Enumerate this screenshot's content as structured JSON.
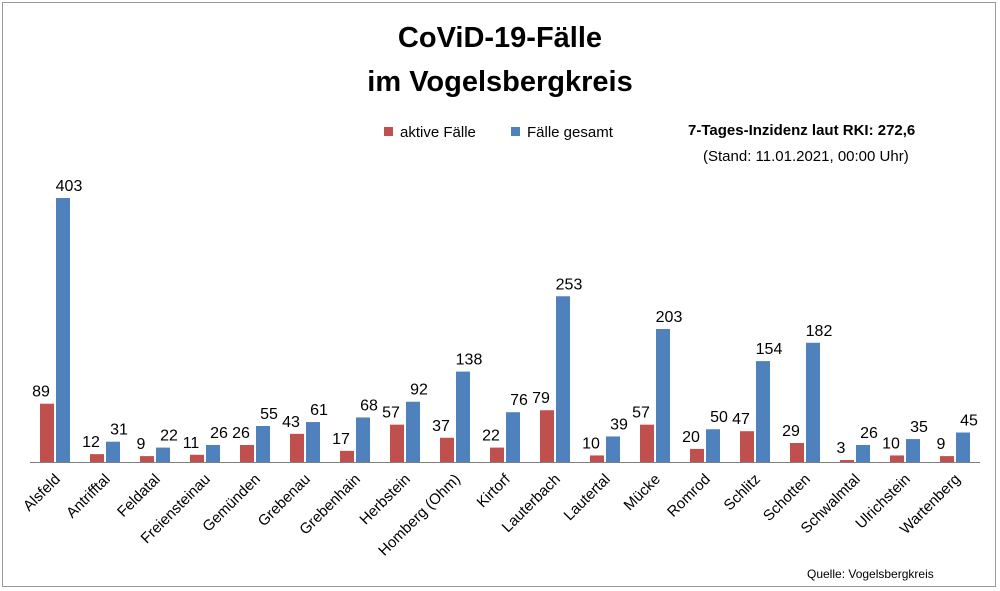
{
  "title": {
    "line1": "CoViD-19-Fälle",
    "line2": "im Vogelsbergkreis"
  },
  "incidence": {
    "line": "7-Tages-Inzidenz laut RKI: 272,6",
    "stand": "(Stand: 11.01.2021, 00:00 Uhr)"
  },
  "source": "Quelle: Vogelsbergkreis",
  "colors": {
    "aktiv": "#c0504d",
    "gesamt": "#4f81bd",
    "axis": "#7f7f7f"
  },
  "chart_data": {
    "type": "bar",
    "categories": [
      "Alsfeld",
      "Antrifftal",
      "Feldatal",
      "Freiensteinau",
      "Gemünden",
      "Grebenau",
      "Grebenhain",
      "Herbstein",
      "Homberg (Ohm)",
      "Kirtorf",
      "Lauterbach",
      "Lautertal",
      "Mücke",
      "Romrod",
      "Schlitz",
      "Schotten",
      "Schwalmtal",
      "Ulrichstein",
      "Wartenberg"
    ],
    "series": [
      {
        "name": "aktive Fälle",
        "values": [
          89,
          12,
          9,
          11,
          26,
          43,
          17,
          57,
          37,
          22,
          79,
          10,
          57,
          20,
          47,
          29,
          3,
          10,
          9
        ]
      },
      {
        "name": "Fälle gesamt",
        "values": [
          403,
          31,
          22,
          26,
          55,
          61,
          68,
          92,
          138,
          76,
          253,
          39,
          203,
          50,
          154,
          182,
          26,
          35,
          45
        ]
      }
    ],
    "data_labels": true,
    "grid": false,
    "legend_position": "top"
  }
}
